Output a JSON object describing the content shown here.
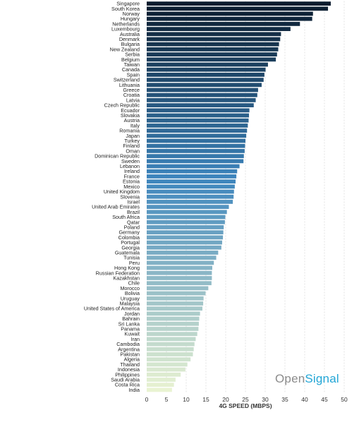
{
  "brand": {
    "part1": "Open",
    "part2": "Signal"
  },
  "chart_data": {
    "type": "bar",
    "orientation": "horizontal",
    "xlabel": "4G SPEED (MBPS)",
    "ylabel": "",
    "xlim": [
      0,
      50
    ],
    "xticks": [
      0,
      5,
      10,
      15,
      20,
      25,
      30,
      35,
      40,
      45,
      50
    ],
    "grid": "vertical dashed",
    "colormap": {
      "start": "#0b1c2e",
      "mid": "#3d85bd",
      "end": "#e9f3d2"
    },
    "categories": [
      "Singapore",
      "South Korea",
      "Norway",
      "Hungary",
      "Netherlands",
      "Luxembourg",
      "Australia",
      "Denmark",
      "Bulgaria",
      "New Zealand",
      "Serbia",
      "Belgium",
      "Taiwan",
      "Canada",
      "Spain",
      "Switzerland",
      "Lithuania",
      "Greece",
      "Croatia",
      "Latvia",
      "Czech Republic",
      "Ecuador",
      "Slovakia",
      "Austria",
      "Italy",
      "Romania",
      "Japan",
      "Turkey",
      "Finland",
      "Oman",
      "Dominican Republic",
      "Sweden",
      "Lebanon",
      "Ireland",
      "France",
      "Estonia",
      "Mexico",
      "United Kingdom",
      "Slovenia",
      "Israel",
      "United Arab Emirates",
      "Brazil",
      "South Africa",
      "Qatar",
      "Poland",
      "Germany",
      "Colombia",
      "Portugal",
      "Georgia",
      "Guatemala",
      "Tunisia",
      "Peru",
      "Hong Kong",
      "Russian Federation",
      "Kazakhstan",
      "Chile",
      "Morocco",
      "Bolivia",
      "Uruguay",
      "Malaysia",
      "United States of America",
      "Jordan",
      "Bahrain",
      "Sri Lanka",
      "Panama",
      "Kuwait",
      "Iran",
      "Cambodia",
      "Argentina",
      "Pakistan",
      "Algeria",
      "Thailand",
      "Indonesia",
      "Philippines",
      "Saudi Arabia",
      "Costa Rica",
      "India"
    ],
    "values": [
      46.6,
      45.9,
      42.1,
      41.9,
      38.8,
      36.4,
      34.0,
      33.8,
      33.5,
      33.3,
      33.0,
      32.7,
      30.7,
      30.1,
      29.8,
      29.6,
      29.1,
      28.2,
      28.0,
      27.6,
      27.1,
      26.0,
      25.9,
      25.8,
      25.6,
      25.4,
      25.2,
      25.0,
      24.9,
      24.8,
      24.6,
      24.5,
      23.5,
      22.9,
      22.7,
      22.5,
      22.3,
      22.1,
      22.0,
      21.8,
      20.8,
      20.3,
      19.9,
      19.8,
      19.5,
      19.4,
      19.3,
      19.1,
      18.9,
      18.1,
      17.6,
      17.0,
      16.6,
      16.5,
      16.5,
      16.4,
      15.6,
      14.9,
      14.4,
      14.3,
      14.1,
      13.5,
      13.3,
      13.2,
      13.1,
      12.8,
      12.4,
      12.1,
      11.9,
      11.7,
      11.1,
      10.3,
      9.8,
      8.6,
      7.3,
      6.9,
      6.4
    ]
  }
}
